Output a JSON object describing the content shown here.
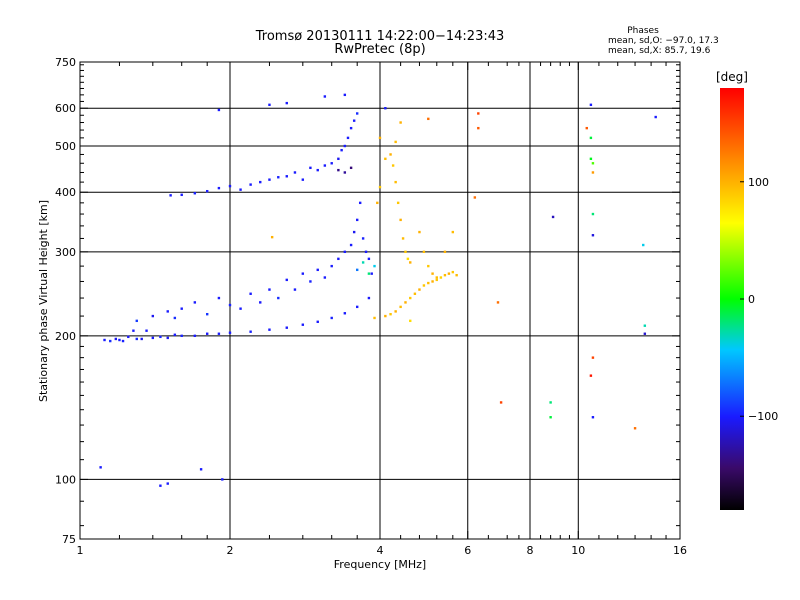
{
  "chart_data": {
    "type": "scatter",
    "title": "Tromsø 20130111 14:22:00−14:23:43",
    "subtitle": "RwPretec (8p)",
    "stats": {
      "heading": "Phases",
      "line_o": "mean, sd,O: −97.0, 17.3",
      "line_x": "mean, sd,X:  85.7, 19.6"
    },
    "xlabel": "Frequency [MHz]",
    "ylabel": "Stationary phase Virtual Height [km]",
    "x_scale": "log",
    "y_scale": "log",
    "xlim": [
      1,
      16
    ],
    "ylim": [
      75,
      750
    ],
    "x_ticks": [
      1,
      2,
      4,
      6,
      8,
      10,
      16
    ],
    "x_tick_labels": [
      "1",
      "2",
      "4",
      "6",
      "8",
      "10",
      "16"
    ],
    "x_minor_ticks": [
      1.2,
      1.4,
      1.6,
      1.8,
      2.4,
      2.8,
      3.2,
      3.6,
      4.4,
      4.8,
      5.2,
      5.6,
      6.6,
      7.2,
      7.6,
      8.4,
      8.8,
      9.2,
      9.6,
      11,
      12,
      13,
      14,
      15
    ],
    "x_grid": [
      2,
      4,
      6,
      8,
      10
    ],
    "y_ticks": [
      75,
      100,
      200,
      300,
      400,
      500,
      600,
      750
    ],
    "y_tick_labels": [
      "75",
      "100",
      "200",
      "300",
      "400",
      "500",
      "600",
      "750"
    ],
    "y_minor_ticks": [
      80,
      90,
      110,
      120,
      130,
      140,
      150,
      160,
      170,
      180,
      190,
      220,
      240,
      260,
      280,
      320,
      340,
      360,
      380,
      420,
      440,
      460,
      480,
      520,
      540,
      560,
      580,
      620,
      640,
      660,
      680,
      700,
      720,
      740
    ],
    "y_grid": [
      100,
      200,
      300,
      400,
      500,
      600
    ],
    "grid": true,
    "colorbar": {
      "label": "[deg]",
      "range": [
        -180,
        180
      ],
      "ticks": [
        100,
        0,
        -100
      ],
      "tick_labels": [
        "100",
        "0",
        "−100"
      ]
    },
    "series": [
      {
        "mode": "O",
        "points": [
          [
            1.12,
            196,
            -100
          ],
          [
            1.15,
            195,
            -95
          ],
          [
            1.18,
            197,
            -105
          ],
          [
            1.2,
            196,
            -100
          ],
          [
            1.22,
            195,
            -98
          ],
          [
            1.25,
            199,
            -102
          ],
          [
            1.28,
            205,
            -100
          ],
          [
            1.3,
            197,
            -96
          ],
          [
            1.33,
            197,
            -104
          ],
          [
            1.36,
            205,
            -100
          ],
          [
            1.4,
            198,
            -100
          ],
          [
            1.45,
            199,
            -97
          ],
          [
            1.5,
            198,
            -103
          ],
          [
            1.55,
            201,
            -100
          ],
          [
            1.6,
            200,
            -98
          ],
          [
            1.7,
            200,
            -100
          ],
          [
            1.8,
            202,
            -102
          ],
          [
            1.9,
            202,
            -100
          ],
          [
            2.0,
            203,
            -100
          ],
          [
            2.2,
            204,
            -98
          ],
          [
            2.4,
            206,
            -100
          ],
          [
            2.6,
            208,
            -102
          ],
          [
            2.8,
            211,
            -100
          ],
          [
            3.0,
            214,
            -100
          ],
          [
            3.2,
            218,
            -98
          ],
          [
            3.4,
            223,
            -100
          ],
          [
            3.6,
            230,
            -100
          ],
          [
            3.8,
            240,
            -102
          ],
          [
            1.3,
            215,
            -90
          ],
          [
            1.4,
            220,
            -105
          ],
          [
            1.5,
            225,
            -100
          ],
          [
            1.55,
            218,
            -95
          ],
          [
            1.6,
            228,
            -100
          ],
          [
            1.7,
            235,
            -100
          ],
          [
            1.8,
            222,
            -92
          ],
          [
            1.9,
            240,
            -100
          ],
          [
            2.0,
            232,
            -98
          ],
          [
            2.1,
            228,
            -100
          ],
          [
            2.2,
            245,
            -100
          ],
          [
            2.3,
            235,
            -102
          ],
          [
            2.4,
            250,
            -100
          ],
          [
            2.5,
            240,
            -95
          ],
          [
            2.6,
            262,
            -100
          ],
          [
            2.7,
            250,
            -100
          ],
          [
            2.8,
            270,
            -100
          ],
          [
            2.9,
            260,
            -98
          ],
          [
            3.0,
            275,
            -100
          ],
          [
            3.1,
            265,
            -100
          ],
          [
            3.2,
            280,
            -100
          ],
          [
            3.3,
            290,
            -102
          ],
          [
            3.4,
            300,
            -100
          ],
          [
            3.5,
            310,
            -100
          ],
          [
            3.55,
            330,
            -105
          ],
          [
            3.6,
            350,
            -100
          ],
          [
            3.65,
            380,
            -100
          ],
          [
            3.7,
            320,
            -98
          ],
          [
            3.75,
            300,
            -100
          ],
          [
            3.8,
            290,
            -100
          ],
          [
            3.85,
            270,
            -100
          ],
          [
            3.6,
            275,
            -70
          ],
          [
            3.7,
            285,
            -30
          ],
          [
            3.8,
            270,
            -20
          ],
          [
            3.9,
            280,
            -40
          ],
          [
            1.52,
            394,
            -100
          ],
          [
            1.6,
            395,
            -100
          ],
          [
            1.7,
            398,
            -98
          ],
          [
            1.8,
            402,
            -100
          ],
          [
            1.9,
            408,
            -100
          ],
          [
            2.0,
            412,
            -102
          ],
          [
            2.1,
            405,
            -100
          ],
          [
            2.2,
            415,
            -100
          ],
          [
            2.3,
            420,
            -100
          ],
          [
            2.4,
            425,
            -100
          ],
          [
            2.5,
            430,
            -98
          ],
          [
            2.6,
            432,
            -100
          ],
          [
            2.7,
            440,
            -100
          ],
          [
            2.8,
            425,
            -100
          ],
          [
            2.9,
            450,
            -102
          ],
          [
            3.0,
            445,
            -100
          ],
          [
            3.1,
            455,
            -100
          ],
          [
            3.2,
            460,
            -100
          ],
          [
            3.3,
            470,
            -105
          ],
          [
            3.35,
            490,
            -100
          ],
          [
            3.4,
            500,
            -100
          ],
          [
            3.45,
            520,
            -100
          ],
          [
            3.5,
            545,
            -100
          ],
          [
            3.55,
            565,
            -100
          ],
          [
            3.6,
            585,
            -95
          ],
          [
            3.4,
            440,
            -130
          ],
          [
            3.5,
            450,
            -140
          ],
          [
            3.3,
            445,
            -135
          ],
          [
            1.9,
            595,
            -100
          ],
          [
            2.4,
            610,
            -100
          ],
          [
            2.6,
            615,
            -100
          ],
          [
            3.1,
            635,
            -100
          ],
          [
            3.4,
            640,
            -100
          ],
          [
            1.1,
            106,
            -100
          ],
          [
            1.45,
            97,
            -100
          ],
          [
            1.5,
            98,
            -100
          ],
          [
            1.75,
            105,
            -100
          ],
          [
            1.93,
            100,
            -100
          ],
          [
            10.7,
            325,
            -110
          ],
          [
            10.7,
            135,
            -100
          ],
          [
            13.6,
            202,
            -115
          ],
          [
            8.9,
            355,
            -120
          ],
          [
            10.6,
            610,
            -100
          ],
          [
            14.3,
            575,
            -100
          ],
          [
            4.1,
            600,
            -100
          ]
        ]
      },
      {
        "mode": "X",
        "points": [
          [
            3.9,
            218,
            95
          ],
          [
            4.1,
            220,
            100
          ],
          [
            4.2,
            222,
            90
          ],
          [
            4.3,
            225,
            100
          ],
          [
            4.4,
            230,
            95
          ],
          [
            4.5,
            235,
            100
          ],
          [
            4.6,
            240,
            90
          ],
          [
            4.7,
            245,
            95
          ],
          [
            4.8,
            250,
            100
          ],
          [
            4.9,
            255,
            90
          ],
          [
            5.0,
            258,
            95
          ],
          [
            5.1,
            260,
            100
          ],
          [
            5.2,
            262,
            90
          ],
          [
            5.3,
            265,
            85
          ],
          [
            5.4,
            268,
            95
          ],
          [
            5.5,
            270,
            100
          ],
          [
            5.6,
            272,
            90
          ],
          [
            5.7,
            268,
            95
          ],
          [
            4.2,
            480,
            100
          ],
          [
            4.3,
            420,
            95
          ],
          [
            4.35,
            380,
            90
          ],
          [
            4.4,
            350,
            100
          ],
          [
            4.45,
            320,
            95
          ],
          [
            4.5,
            300,
            90
          ],
          [
            4.55,
            290,
            80
          ],
          [
            4.6,
            285,
            100
          ],
          [
            4.3,
            510,
            95
          ],
          [
            4.25,
            455,
            90
          ],
          [
            4.4,
            560,
            100
          ],
          [
            4.8,
            330,
            100
          ],
          [
            4.9,
            300,
            95
          ],
          [
            5.0,
            280,
            90
          ],
          [
            5.1,
            270,
            100
          ],
          [
            5.2,
            265,
            95
          ],
          [
            5.4,
            300,
            100
          ],
          [
            5.6,
            330,
            95
          ],
          [
            4.0,
            520,
            100
          ],
          [
            4.1,
            470,
            95
          ],
          [
            4.0,
            410,
            90
          ],
          [
            3.95,
            380,
            100
          ],
          [
            5.0,
            570,
            130
          ],
          [
            6.3,
            585,
            150
          ],
          [
            6.3,
            545,
            140
          ],
          [
            6.2,
            390,
            130
          ],
          [
            6.9,
            235,
            130
          ],
          [
            7.0,
            145,
            150
          ],
          [
            8.8,
            145,
            -20
          ],
          [
            8.8,
            135,
            -10
          ],
          [
            10.4,
            545,
            140
          ],
          [
            10.6,
            520,
            -10
          ],
          [
            10.6,
            470,
            -5
          ],
          [
            10.7,
            460,
            20
          ],
          [
            10.7,
            440,
            110
          ],
          [
            10.7,
            360,
            -20
          ],
          [
            10.7,
            180,
            150
          ],
          [
            10.6,
            165,
            170
          ],
          [
            13.0,
            128,
            130
          ],
          [
            13.6,
            210,
            -30
          ],
          [
            13.5,
            310,
            -40
          ],
          [
            2.43,
            322,
            100
          ],
          [
            4.6,
            215,
            80
          ]
        ]
      }
    ]
  }
}
